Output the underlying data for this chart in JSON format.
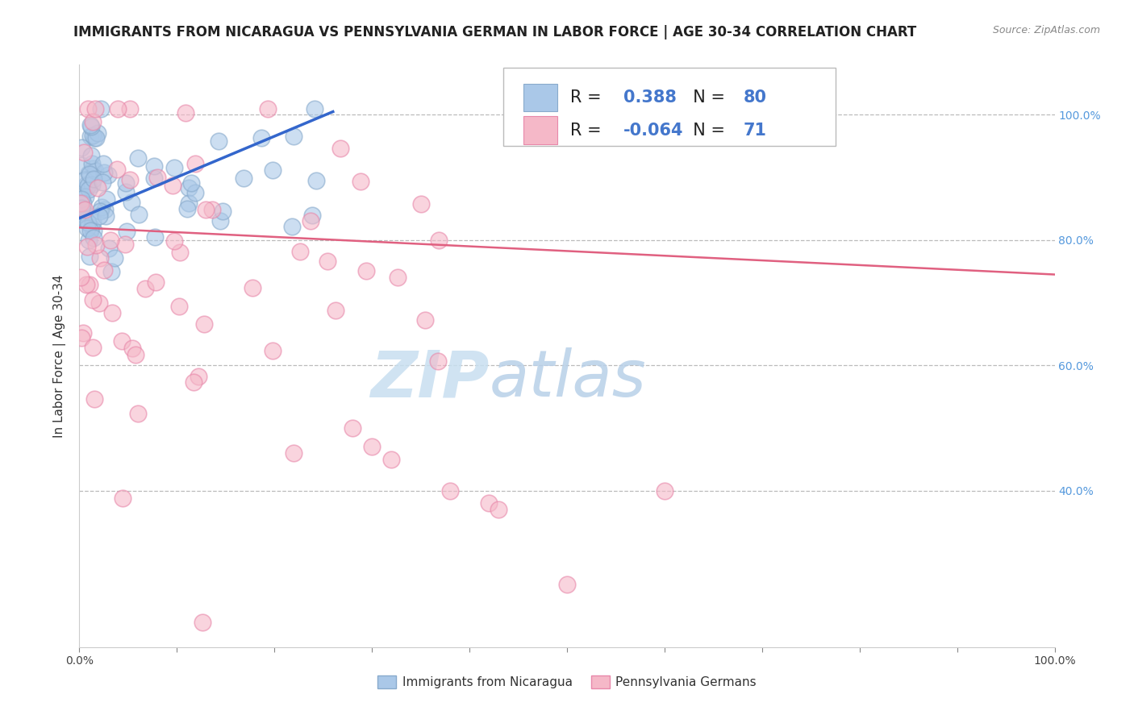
{
  "title": "IMMIGRANTS FROM NICARAGUA VS PENNSYLVANIA GERMAN IN LABOR FORCE | AGE 30-34 CORRELATION CHART",
  "source": "Source: ZipAtlas.com",
  "ylabel": "In Labor Force | Age 30-34",
  "blue_label": "Immigrants from Nicaragua",
  "pink_label": "Pennsylvania Germans",
  "blue_R": 0.388,
  "blue_N": 80,
  "pink_R": -0.064,
  "pink_N": 71,
  "xlim": [
    0.0,
    1.0
  ],
  "ylim": [
    0.15,
    1.08
  ],
  "plot_ylim": [
    0.15,
    1.08
  ],
  "ytick_labels": [
    "40.0%",
    "60.0%",
    "80.0%",
    "100.0%"
  ],
  "ytick_values": [
    0.4,
    0.6,
    0.8,
    1.0
  ],
  "xtick_labels": [
    "0.0%",
    "",
    "",
    "",
    "",
    "",
    "",
    "",
    "",
    "",
    "100.0%"
  ],
  "xtick_values": [
    0.0,
    0.1,
    0.2,
    0.3,
    0.4,
    0.5,
    0.6,
    0.7,
    0.8,
    0.9,
    1.0
  ],
  "grid_color": "#bbbbbb",
  "blue_color": "#aac8e8",
  "pink_color": "#f5b8c8",
  "blue_edge_color": "#88aacc",
  "pink_edge_color": "#e888aa",
  "blue_line_color": "#3366cc",
  "pink_line_color": "#e06080",
  "background_color": "#ffffff",
  "watermark_zip_color": "#c8dff0",
  "watermark_atlas_color": "#b8d0e8",
  "title_fontsize": 12,
  "label_fontsize": 11,
  "tick_fontsize": 10,
  "legend_fontsize": 15
}
